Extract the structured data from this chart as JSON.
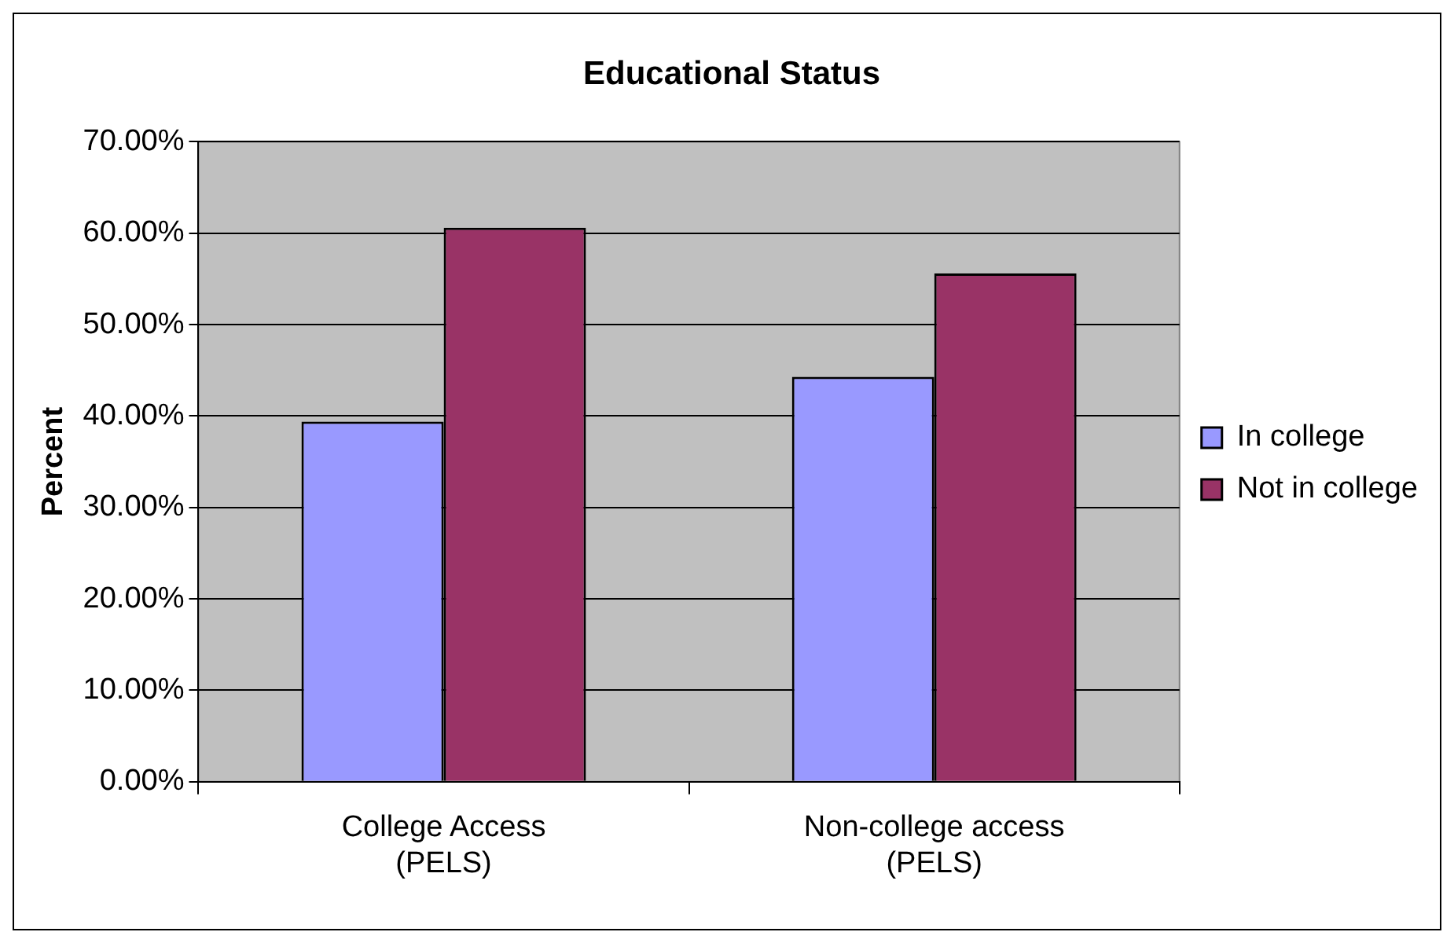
{
  "chart_data": {
    "type": "bar",
    "title": "Educational Status",
    "ylabel": "Percent",
    "categories": [
      "College Access (PELS)",
      "Non-college access (PELS)"
    ],
    "series": [
      {
        "name": "In college",
        "color": "#9999ff",
        "values": [
          39.4,
          44.3
        ]
      },
      {
        "name": "Not in college",
        "color": "#993366",
        "values": [
          60.6,
          55.6
        ]
      }
    ],
    "ylim": [
      0,
      70
    ],
    "yticks": [
      {
        "value": 0,
        "label": "0.00%"
      },
      {
        "value": 10,
        "label": "10.00%"
      },
      {
        "value": 20,
        "label": "20.00%"
      },
      {
        "value": 30,
        "label": "30.00%"
      },
      {
        "value": 40,
        "label": "40.00%"
      },
      {
        "value": 50,
        "label": "50.00%"
      },
      {
        "value": 60,
        "label": "60.00%"
      },
      {
        "value": 70,
        "label": "70.00%"
      }
    ],
    "grid": "y",
    "legend": "right"
  }
}
